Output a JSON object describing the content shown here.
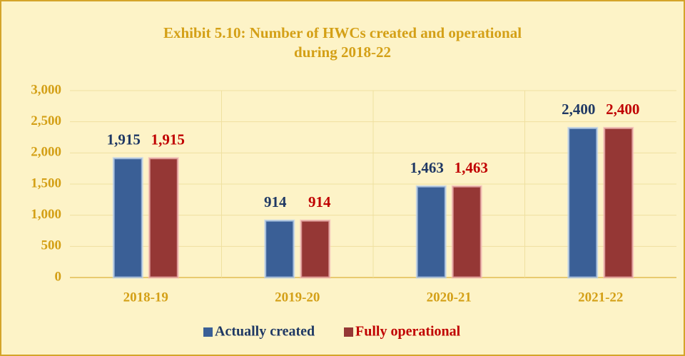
{
  "chart_data": {
    "type": "bar",
    "title": [
      "Exhibit 5.10: Number of HWCs created and operational",
      "during 2018-22"
    ],
    "categories": [
      "2018-19",
      "2019-20",
      "2020-21",
      "2021-22"
    ],
    "series": [
      {
        "name": "Actually created",
        "color": "#3a5f96",
        "label_color": "#1f3864",
        "values": [
          1915,
          914,
          1463,
          2400
        ],
        "value_labels": [
          "1,915",
          "914",
          "1,463",
          "2,400"
        ]
      },
      {
        "name": "Fully operational",
        "color": "#953735",
        "label_color": "#c00000",
        "values": [
          1915,
          914,
          1463,
          2400
        ],
        "value_labels": [
          "1,915",
          "914",
          "1,463",
          "2,400"
        ]
      }
    ],
    "ylim": [
      0,
      3000
    ],
    "yticks": [
      0,
      500,
      {
        "value": 1000,
        "label": "1,000"
      },
      {
        "value": 1500,
        "label": "1,500"
      },
      {
        "value": 2000,
        "label": "2,000"
      },
      {
        "value": 2500,
        "label": "2,500"
      },
      {
        "value": 3000,
        "label": "3,000"
      }
    ],
    "grid": true,
    "legend": "bottom"
  }
}
